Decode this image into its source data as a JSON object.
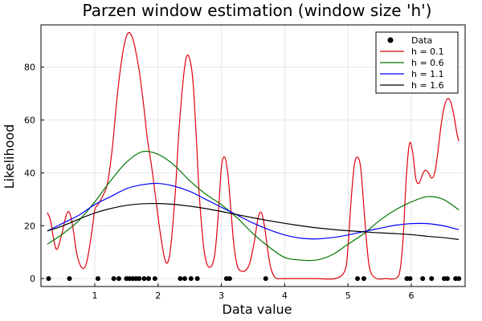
{
  "chart_data": {
    "type": "line",
    "title": "Parzen window estimation (window size 'h')",
    "xlabel": "Data value",
    "ylabel": "Likelihood",
    "xlim": [
      0.15,
      6.85
    ],
    "ylim": [
      -3,
      96
    ],
    "xticks": [
      1,
      2,
      3,
      4,
      5,
      6
    ],
    "yticks": [
      0,
      20,
      40,
      60,
      80
    ],
    "grid": true,
    "legend_position": "top-right",
    "data_points": {
      "name": "Data",
      "color": "#000000",
      "x": [
        0.27,
        0.6,
        1.05,
        1.3,
        1.38,
        1.5,
        1.55,
        1.6,
        1.65,
        1.7,
        1.78,
        1.85,
        1.95,
        2.35,
        2.42,
        2.52,
        2.62,
        3.08,
        3.13,
        3.7,
        5.15,
        5.25,
        5.93,
        5.98,
        6.18,
        6.32,
        6.52,
        6.57,
        6.7,
        6.75
      ],
      "y": [
        0,
        0,
        0,
        0,
        0,
        0,
        0,
        0,
        0,
        0,
        0,
        0,
        0,
        0,
        0,
        0,
        0,
        0,
        0,
        0,
        0,
        0,
        0,
        0,
        0,
        0,
        0,
        0,
        0,
        0
      ]
    },
    "series": [
      {
        "name": "h = 0.1",
        "color": "#e0000e",
        "x": [
          0.25,
          0.3,
          0.35,
          0.4,
          0.47,
          0.55,
          0.6,
          0.65,
          0.72,
          0.8,
          0.87,
          0.95,
          1.0,
          1.05,
          1.12,
          1.2,
          1.28,
          1.35,
          1.42,
          1.48,
          1.53,
          1.58,
          1.63,
          1.7,
          1.77,
          1.83,
          1.9,
          1.97,
          2.03,
          2.1,
          2.15,
          2.2,
          2.27,
          2.33,
          2.4,
          2.45,
          2.5,
          2.55,
          2.6,
          2.65,
          2.72,
          2.78,
          2.85,
          2.9,
          2.95,
          3.0,
          3.05,
          3.1,
          3.15,
          3.2,
          3.25,
          3.3,
          3.38,
          3.45,
          3.52,
          3.58,
          3.63,
          3.68,
          3.73,
          3.78,
          3.83,
          3.88,
          4.0,
          4.2,
          4.5,
          4.8,
          4.95,
          5.0,
          5.05,
          5.1,
          5.15,
          5.2,
          5.25,
          5.3,
          5.35,
          5.45,
          5.6,
          5.75,
          5.82,
          5.87,
          5.92,
          5.97,
          6.02,
          6.07,
          6.12,
          6.17,
          6.22,
          6.27,
          6.32,
          6.37,
          6.42,
          6.47,
          6.52,
          6.57,
          6.62,
          6.67,
          6.72,
          6.75
        ],
        "y": [
          25,
          22,
          15,
          11,
          16,
          24,
          25,
          20,
          9,
          4,
          6,
          17,
          26,
          28,
          31,
          36,
          50,
          68,
          82,
          90,
          93,
          92,
          88,
          79,
          66,
          53,
          42,
          29,
          18,
          8,
          6,
          12,
          32,
          56,
          76,
          84,
          83,
          75,
          55,
          32,
          12,
          5,
          5,
          10,
          24,
          42,
          46,
          40,
          26,
          12,
          5,
          3,
          3,
          6,
          14,
          23,
          25,
          20,
          11,
          4,
          1,
          0,
          0,
          0,
          0,
          0,
          3,
          12,
          30,
          43,
          46,
          42,
          27,
          12,
          3,
          0,
          0,
          0,
          3,
          15,
          38,
          51,
          48,
          38,
          36,
          39,
          41,
          40,
          38,
          40,
          48,
          58,
          65,
          68,
          67,
          62,
          55,
          52
        ]
      },
      {
        "name": "h = 0.6",
        "color": "#007700",
        "x": [
          0.25,
          0.5,
          0.75,
          1.0,
          1.25,
          1.5,
          1.75,
          2.0,
          2.25,
          2.5,
          2.75,
          3.0,
          3.25,
          3.5,
          3.75,
          4.0,
          4.25,
          4.5,
          4.75,
          5.0,
          5.25,
          5.5,
          5.75,
          6.0,
          6.25,
          6.5,
          6.75
        ],
        "y": [
          13,
          17,
          22,
          29,
          37,
          44,
          48,
          47,
          43,
          37,
          32,
          28,
          23,
          17,
          12,
          8,
          7,
          7,
          9,
          13,
          17,
          22,
          26,
          29,
          31,
          30,
          26
        ]
      },
      {
        "name": "h = 1.1",
        "color": "#0000ff",
        "x": [
          0.25,
          0.5,
          0.75,
          1.0,
          1.25,
          1.5,
          1.75,
          2.0,
          2.25,
          2.5,
          2.75,
          3.0,
          3.25,
          3.5,
          3.75,
          4.0,
          4.25,
          4.5,
          4.75,
          5.0,
          5.25,
          5.5,
          5.75,
          6.0,
          6.25,
          6.5,
          6.75
        ],
        "y": [
          18,
          21,
          24,
          28,
          31,
          34,
          35.5,
          36,
          35,
          33,
          30,
          27,
          24,
          21,
          18.5,
          16.5,
          15.3,
          15,
          15.5,
          16.5,
          17.8,
          19,
          20.2,
          20.8,
          20.8,
          20,
          18.5
        ]
      },
      {
        "name": "h = 1.6",
        "color": "#000000",
        "x": [
          0.25,
          0.5,
          0.75,
          1.0,
          1.25,
          1.5,
          1.75,
          2.0,
          2.25,
          2.5,
          2.75,
          3.0,
          3.25,
          3.5,
          3.75,
          4.0,
          4.25,
          4.5,
          4.75,
          5.0,
          5.25,
          5.5,
          5.75,
          6.0,
          6.25,
          6.5,
          6.75
        ],
        "y": [
          18,
          20,
          22.5,
          24.8,
          26.5,
          27.7,
          28.3,
          28.4,
          28.1,
          27.4,
          26.5,
          25.4,
          24.2,
          23,
          21.9,
          20.9,
          20,
          19.2,
          18.6,
          18.1,
          17.7,
          17.3,
          17,
          16.6,
          16,
          15.5,
          14.8
        ]
      }
    ]
  }
}
